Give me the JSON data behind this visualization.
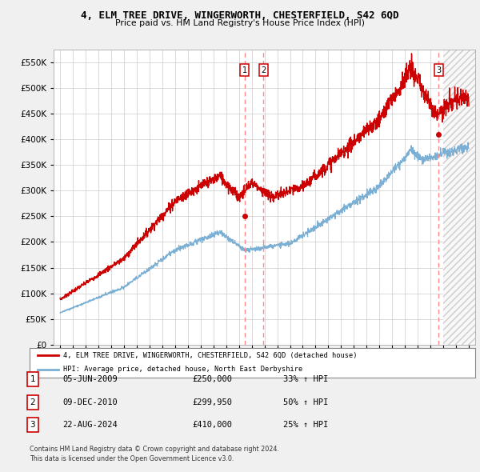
{
  "title": "4, ELM TREE DRIVE, WINGERWORTH, CHESTERFIELD, S42 6QD",
  "subtitle": "Price paid vs. HM Land Registry's House Price Index (HPI)",
  "legend_label_red": "4, ELM TREE DRIVE, WINGERWORTH, CHESTERFIELD, S42 6QD (detached house)",
  "legend_label_blue": "HPI: Average price, detached house, North East Derbyshire",
  "transactions": [
    {
      "num": 1,
      "date": "05-JUN-2009",
      "price": 250000,
      "pct": "33%",
      "dir": "↑",
      "x": 2009.43
    },
    {
      "num": 2,
      "date": "09-DEC-2010",
      "price": 299950,
      "pct": "50%",
      "dir": "↑",
      "x": 2010.93
    },
    {
      "num": 3,
      "date": "22-AUG-2024",
      "price": 410000,
      "pct": "25%",
      "dir": "↑",
      "x": 2024.64
    }
  ],
  "footer1": "Contains HM Land Registry data © Crown copyright and database right 2024.",
  "footer2": "This data is licensed under the Open Government Licence v3.0.",
  "ylim": [
    0,
    575000
  ],
  "yticks": [
    0,
    50000,
    100000,
    150000,
    200000,
    250000,
    300000,
    350000,
    400000,
    450000,
    500000,
    550000
  ],
  "background_color": "#f0f0f0",
  "plot_bg_color": "#ffffff",
  "red_color": "#cc0000",
  "blue_color": "#7bafd4",
  "vline_color": "#ff8888",
  "xlim_left": 1994.5,
  "xlim_right": 2027.5,
  "hatch_start": 2025.0
}
